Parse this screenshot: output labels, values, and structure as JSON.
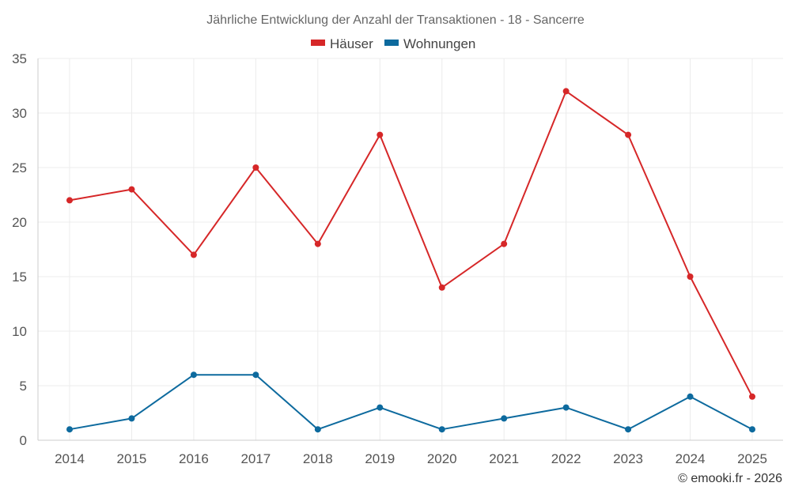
{
  "chart_data": {
    "type": "line",
    "title": "Jährliche Entwicklung der Anzahl der Transaktionen - 18 - Sancerre",
    "categories": [
      "2014",
      "2015",
      "2016",
      "2017",
      "2018",
      "2019",
      "2020",
      "2021",
      "2022",
      "2023",
      "2024",
      "2025"
    ],
    "series": [
      {
        "name": "Häuser",
        "color": "#d62728",
        "values": [
          22,
          23,
          17,
          25,
          18,
          28,
          14,
          18,
          32,
          28,
          15,
          4
        ]
      },
      {
        "name": "Wohnungen",
        "color": "#0d6a9e",
        "values": [
          1,
          2,
          6,
          6,
          1,
          3,
          1,
          2,
          3,
          1,
          4,
          1
        ]
      }
    ],
    "ylim": [
      0,
      35
    ],
    "yticks": [
      0,
      5,
      10,
      15,
      20,
      25,
      30,
      35
    ],
    "xlabel": "",
    "ylabel": "",
    "grid": true,
    "legend": "top-center"
  },
  "credit": "© emooki.fr - 2026"
}
